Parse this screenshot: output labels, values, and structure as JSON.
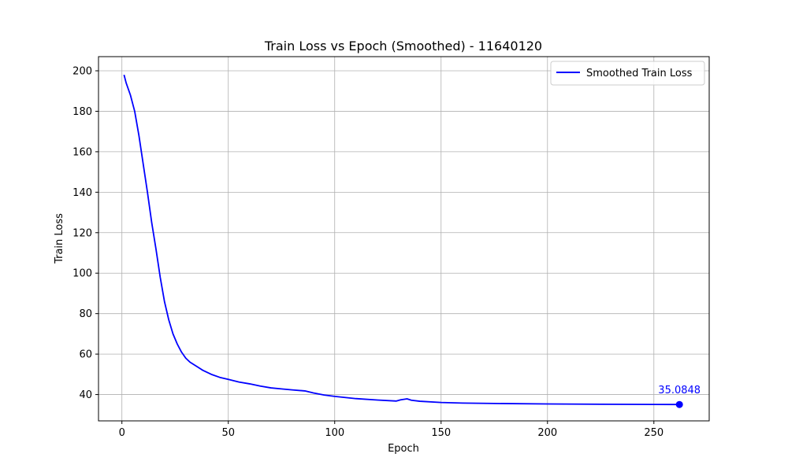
{
  "chart_data": {
    "type": "line",
    "title": "Train Loss vs Epoch (Smoothed) - 11640120",
    "xlabel": "Epoch",
    "ylabel": "Train Loss",
    "xlim": [
      -11,
      276
    ],
    "ylim": [
      27,
      207
    ],
    "xticks": [
      0,
      50,
      100,
      150,
      200,
      250
    ],
    "yticks": [
      40,
      60,
      80,
      100,
      120,
      140,
      160,
      180,
      200
    ],
    "grid": true,
    "legend": {
      "placement": "top-right",
      "entries": [
        "Smoothed Train Loss"
      ]
    },
    "line_color": "#0000ff",
    "series": [
      {
        "name": "Smoothed Train Loss",
        "x": [
          1,
          2,
          4,
          6,
          8,
          10,
          12,
          14,
          16,
          18,
          20,
          22,
          24,
          26,
          28,
          30,
          32,
          35,
          38,
          42,
          46,
          50,
          55,
          60,
          65,
          70,
          75,
          80,
          86,
          90,
          95,
          100,
          110,
          120,
          129,
          131,
          134,
          136,
          140,
          150,
          160,
          175,
          200,
          225,
          250,
          262
        ],
        "y": [
          198,
          194,
          188,
          180,
          168,
          154,
          140,
          125,
          112,
          98,
          86,
          77,
          70,
          65,
          61,
          58,
          56,
          54,
          52,
          50,
          48.5,
          47.5,
          46.2,
          45.3,
          44.2,
          43.3,
          42.8,
          42.3,
          41.8,
          40.8,
          39.8,
          39.1,
          38.0,
          37.3,
          36.8,
          37.4,
          37.9,
          37.2,
          36.7,
          36.1,
          35.8,
          35.6,
          35.35,
          35.2,
          35.1,
          35.0848
        ]
      }
    ],
    "annotations": [
      {
        "x": 262,
        "y": 35.0848,
        "text": "35.0848",
        "color": "#0000ff"
      }
    ]
  }
}
